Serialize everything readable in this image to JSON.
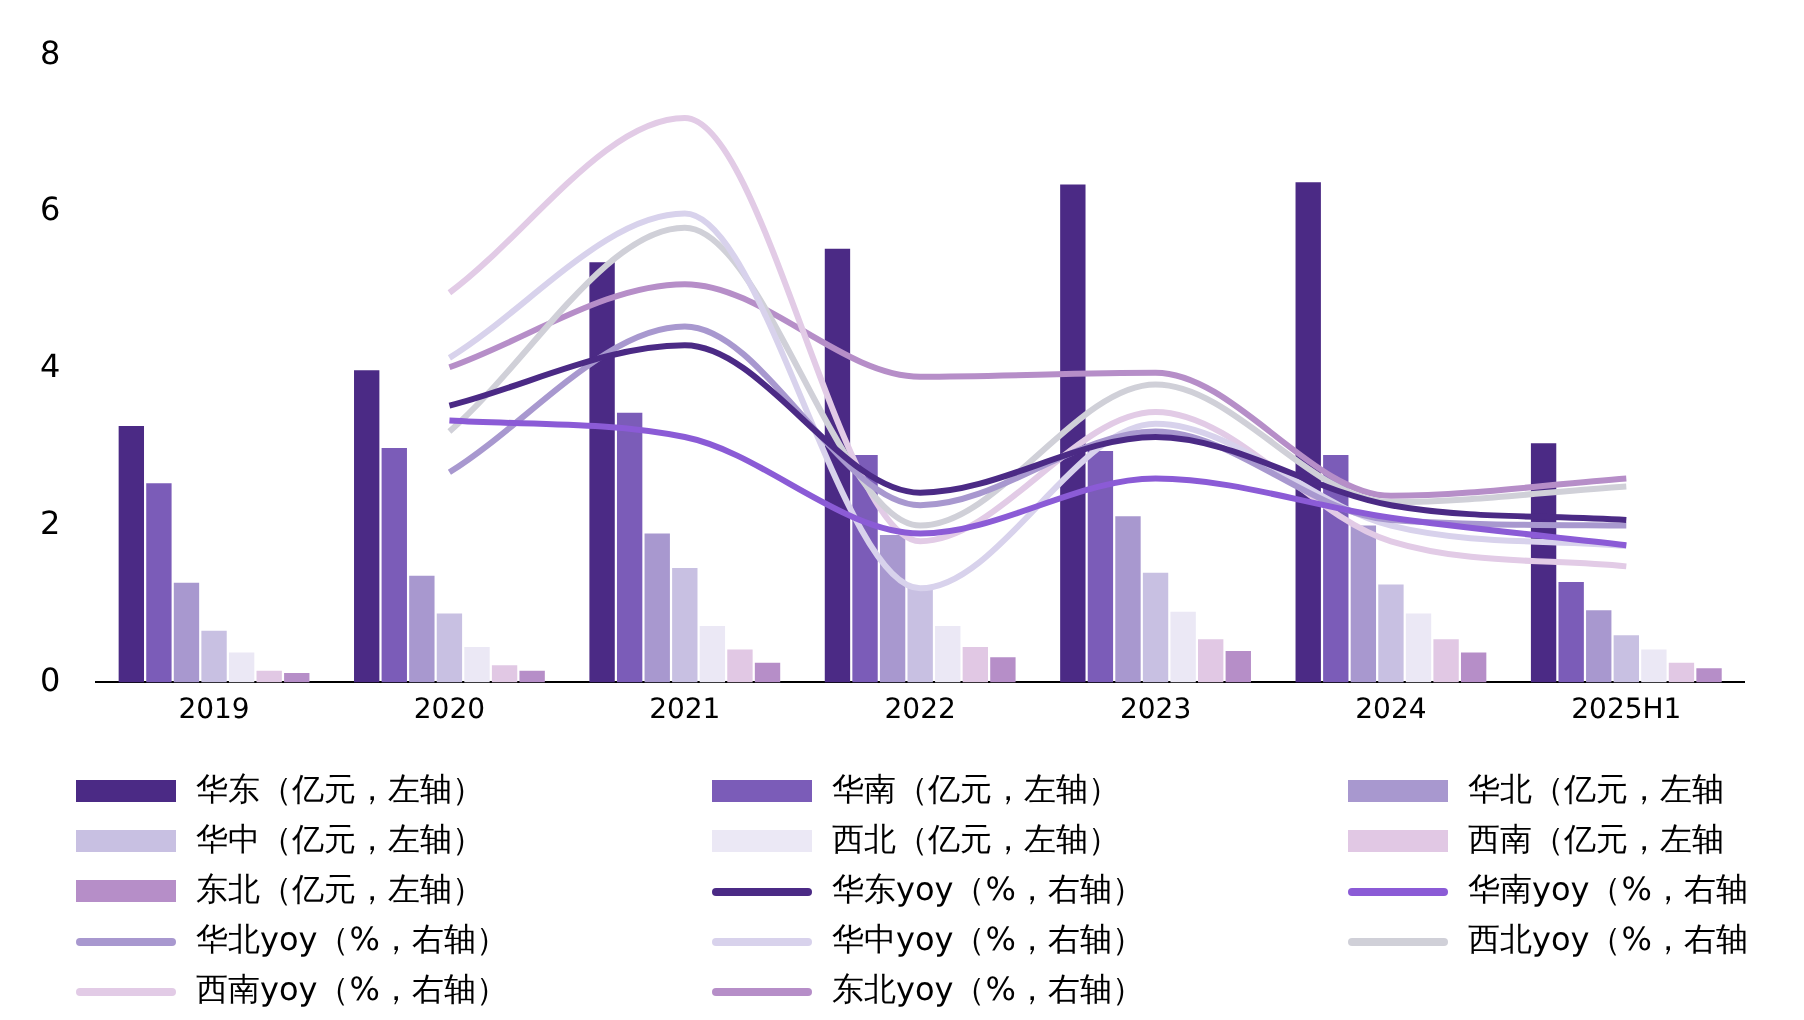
{
  "chart_data": {
    "type": "bar",
    "categories": [
      "2019",
      "2020",
      "2021",
      "2022",
      "2023",
      "2024",
      "2025H1"
    ],
    "ylim": [
      0,
      8
    ],
    "yticks": [
      0,
      2,
      4,
      6,
      8
    ],
    "grid": false,
    "legend": "bottom",
    "marker": "none",
    "series": [
      {
        "name": "华东（亿元，左轴）",
        "color": "#4b2a85",
        "values": [
          3.27,
          3.98,
          5.36,
          5.53,
          6.35,
          6.38,
          3.05
        ]
      },
      {
        "name": "华南（亿元，左轴）",
        "color": "#7b5cb8",
        "values": [
          2.54,
          2.99,
          3.44,
          2.9,
          2.95,
          2.9,
          1.28
        ]
      },
      {
        "name": "华北（亿元，左轴",
        "color": "#a898cf",
        "values": [
          1.27,
          1.36,
          1.9,
          1.88,
          2.12,
          2.0,
          0.92
        ]
      },
      {
        "name": "华中（亿元，左轴）",
        "color": "#c8c0e2",
        "values": [
          0.66,
          0.88,
          1.46,
          1.22,
          1.4,
          1.25,
          0.6
        ]
      },
      {
        "name": "西北（亿元，左轴）",
        "color": "#ebe8f5",
        "values": [
          0.38,
          0.45,
          0.72,
          0.72,
          0.9,
          0.88,
          0.42
        ]
      },
      {
        "name": "西南（亿元，左轴",
        "color": "#e1c8e4",
        "values": [
          0.15,
          0.22,
          0.42,
          0.45,
          0.55,
          0.55,
          0.25
        ]
      },
      {
        "name": "东北（亿元，左轴）",
        "color": "#b68ec8",
        "values": [
          0.12,
          0.15,
          0.25,
          0.32,
          0.4,
          0.38,
          0.18
        ]
      },
      {
        "name": "华东yoy（%，右轴）",
        "type": "line",
        "color": "#4b2a85",
        "values": [
          null,
          3.53,
          4.3,
          2.42,
          3.13,
          2.26,
          2.07
        ]
      },
      {
        "name": "华南yoy（%，右轴",
        "type": "line",
        "color": "#8b5bd6",
        "values": [
          null,
          3.34,
          3.13,
          1.9,
          2.6,
          2.1,
          1.75
        ]
      },
      {
        "name": "华北yoy（%，右轴）",
        "type": "line",
        "color": "#a898cf",
        "values": [
          null,
          2.68,
          4.54,
          2.26,
          3.2,
          2.07,
          2.0
        ]
      },
      {
        "name": "华中yoy（%，右轴）",
        "type": "line",
        "color": "#d8d2ec",
        "values": [
          null,
          4.14,
          5.98,
          1.2,
          3.3,
          2.0,
          1.74
        ]
      },
      {
        "name": "西北yoy（%，右轴",
        "type": "line",
        "color": "#d0d0d8",
        "values": [
          null,
          3.2,
          5.8,
          2.0,
          3.8,
          2.3,
          2.5
        ]
      },
      {
        "name": "西南yoy（%，右轴）",
        "type": "line",
        "color": "#e2cbe6",
        "values": [
          null,
          4.97,
          7.2,
          1.8,
          3.45,
          1.8,
          1.48
        ]
      },
      {
        "name": "东北yoy（%，右轴）",
        "type": "line",
        "color": "#b68ec8",
        "values": [
          null,
          4.02,
          5.08,
          3.9,
          3.95,
          2.38,
          2.6
        ]
      }
    ]
  }
}
